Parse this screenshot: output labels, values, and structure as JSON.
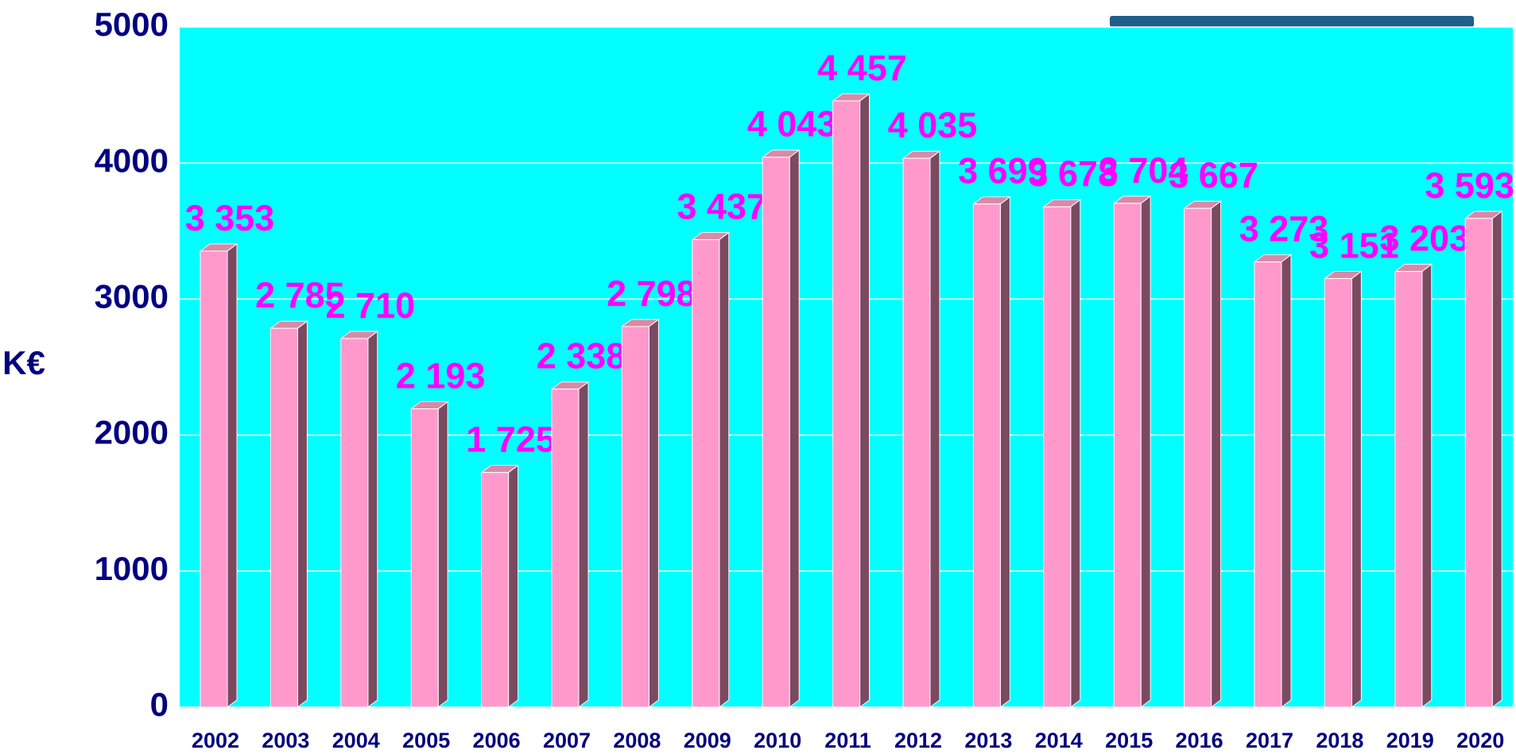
{
  "chart_data": {
    "type": "bar3d",
    "ylabel": "K€",
    "categories": [
      "2002",
      "2003",
      "2004",
      "2005",
      "2006",
      "2007",
      "2008",
      "2009",
      "2010",
      "2011",
      "2012",
      "2013",
      "2014",
      "2015",
      "2016",
      "2017",
      "2018",
      "2019",
      "2020"
    ],
    "values": [
      3353,
      2785,
      2710,
      2193,
      1725,
      2338,
      2798,
      3437,
      4043,
      4457,
      4035,
      3699,
      3678,
      3704,
      3667,
      3273,
      3151,
      3203,
      3593
    ],
    "value_labels": [
      "3 353",
      "2 785",
      "2 710",
      "2 193",
      "1 725",
      "2 338",
      "2 798",
      "3 437",
      "4 043",
      "4 457",
      "4 035",
      "3 699",
      "3 678",
      "3 704",
      "3 667",
      "3 273",
      "3 151",
      "3 203",
      "3 593"
    ],
    "color": "#ff99cc",
    "ylim": [
      0,
      5000
    ],
    "yticks": [
      0,
      1000,
      2000,
      3000,
      4000,
      5000
    ],
    "grid": true
  }
}
